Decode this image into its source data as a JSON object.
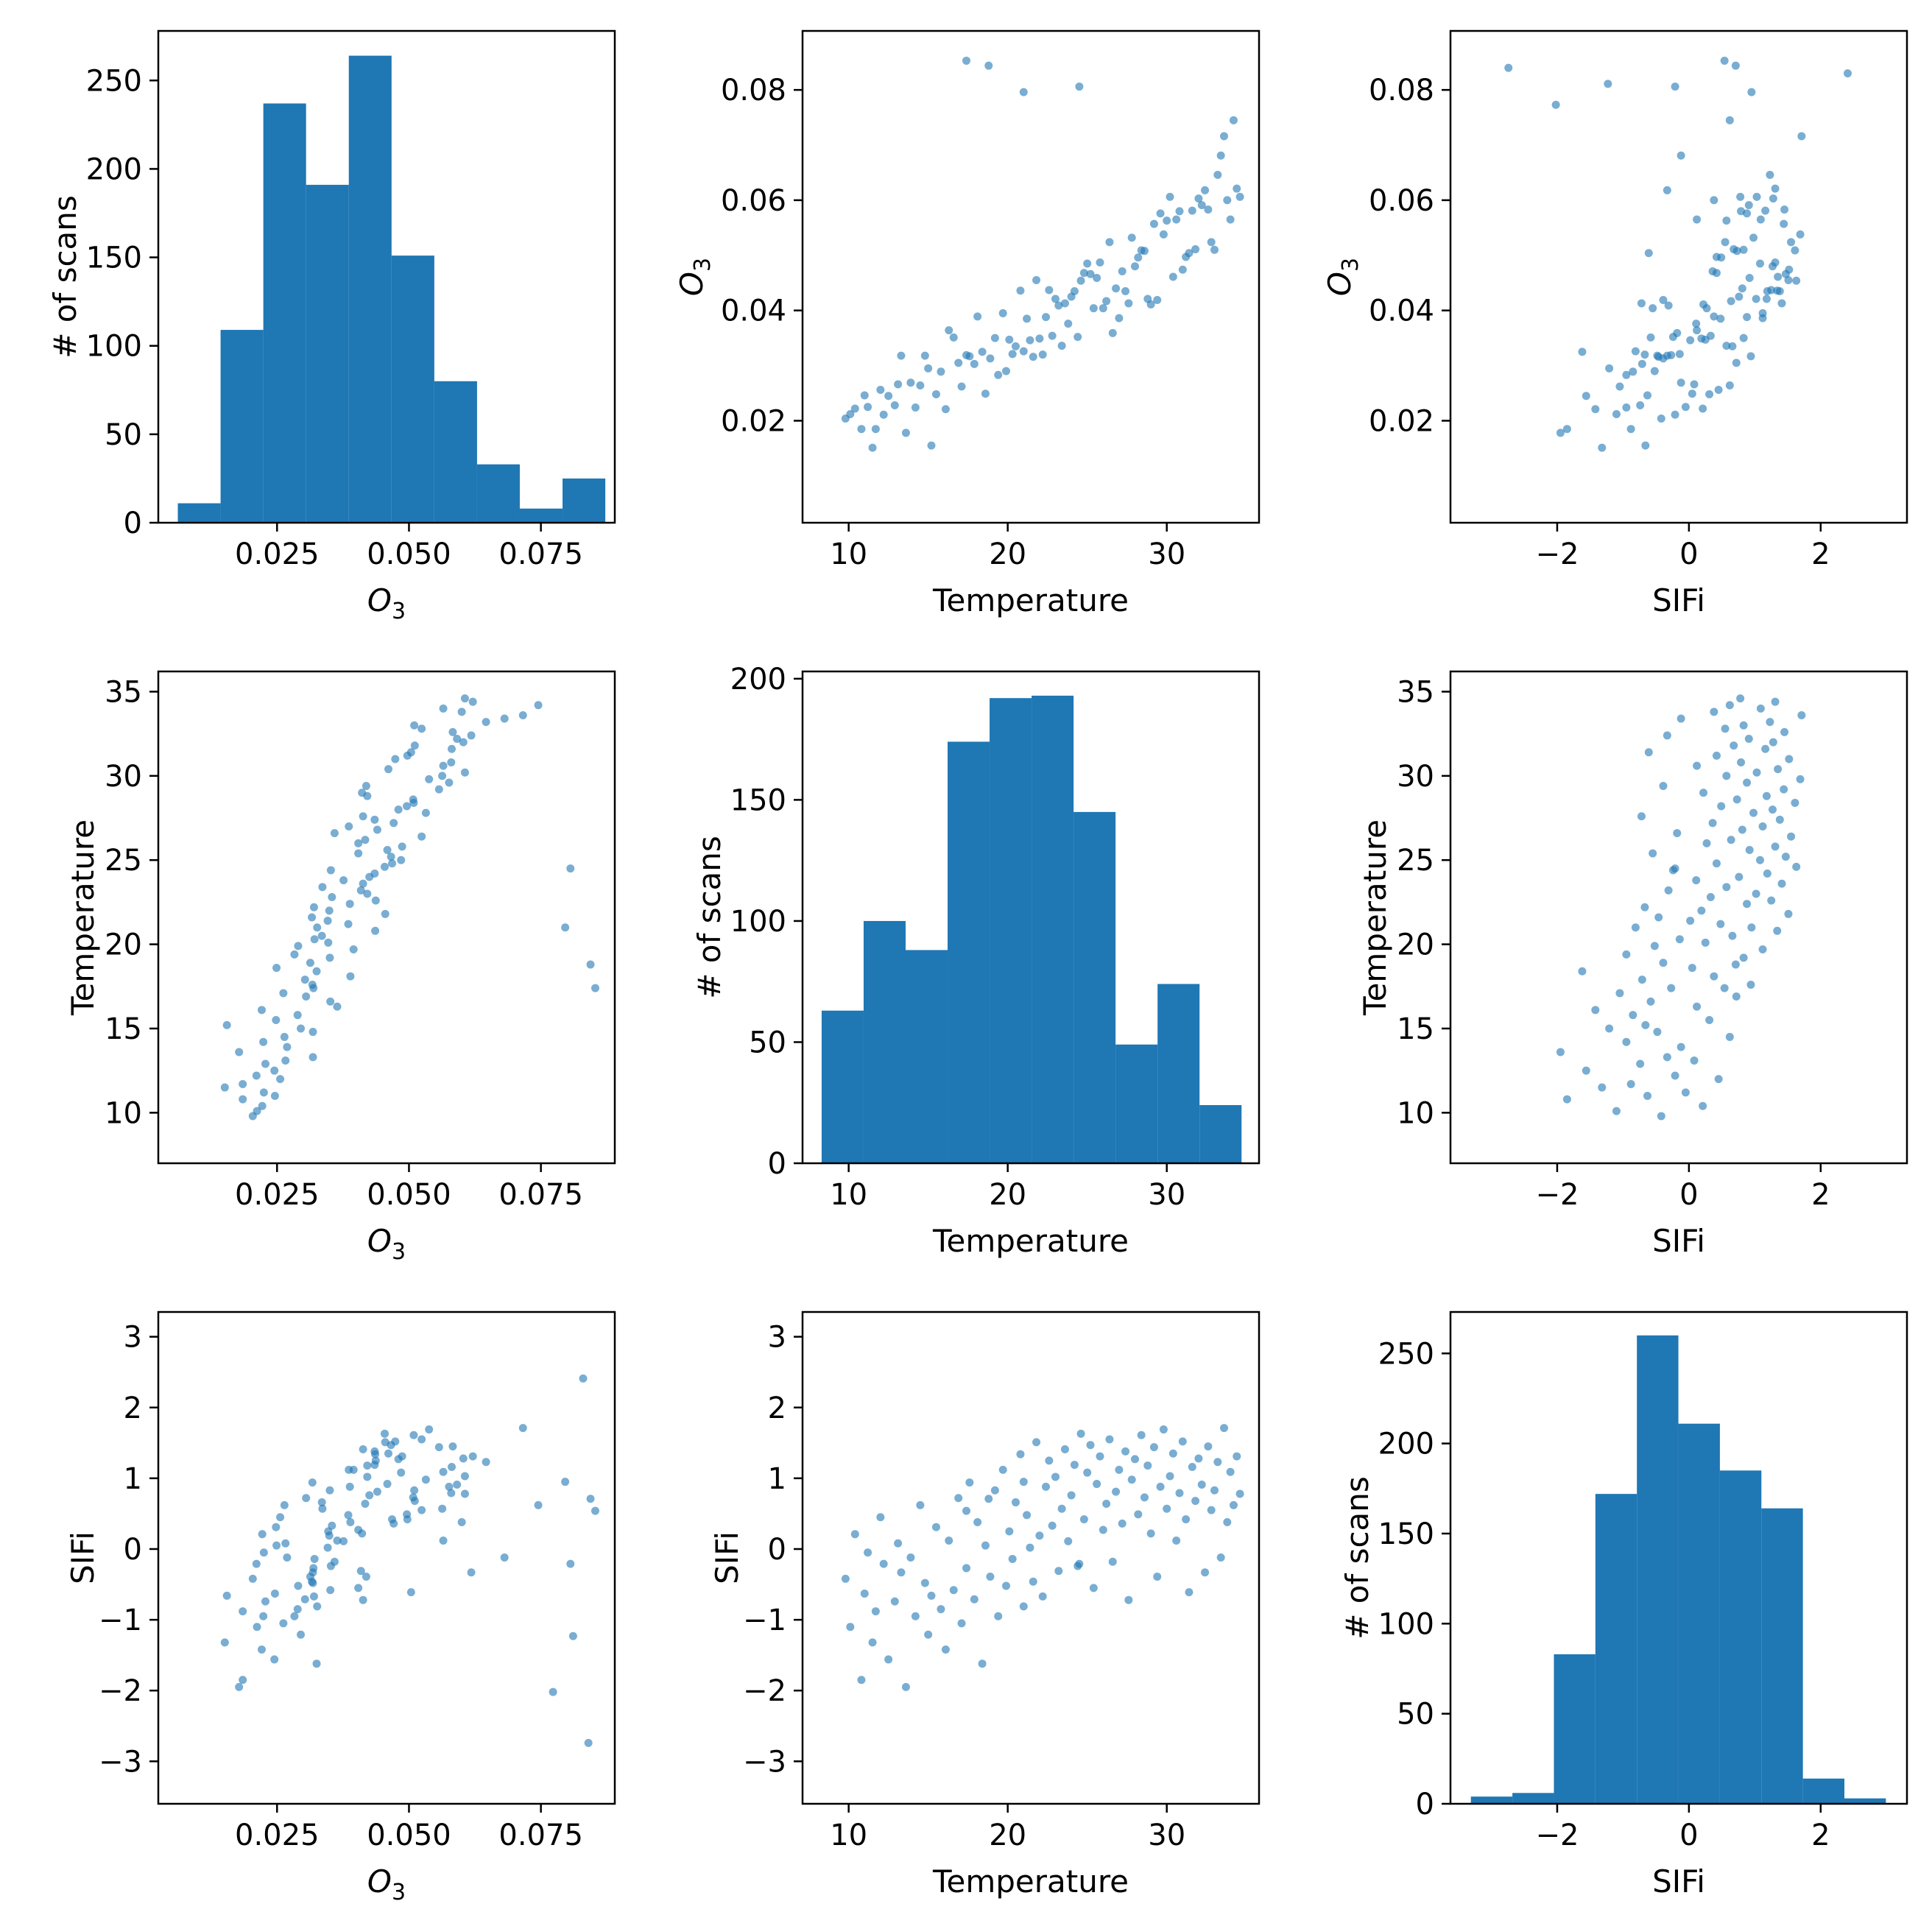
{
  "chart_data": [
    {
      "type": "bar",
      "variant": "histogram",
      "row": 0,
      "col": 0,
      "x_variable": "O3",
      "xlabel": "O",
      "xlabel_sub": "3",
      "ylabel": "# of scans",
      "xlim": [
        0.0025,
        0.089
      ],
      "ylim": [
        0,
        278
      ],
      "xticks": [
        0.025,
        0.05,
        0.075
      ],
      "xtick_labels": [
        "0.025",
        "0.050",
        "0.075"
      ],
      "yticks": [
        0,
        50,
        100,
        150,
        200,
        250
      ],
      "ytick_labels": [
        "0",
        "50",
        "100",
        "150",
        "200",
        "250"
      ],
      "bin_edges": [
        0.0062,
        0.0143,
        0.0224,
        0.0305,
        0.0386,
        0.0467,
        0.0548,
        0.0629,
        0.071,
        0.0791,
        0.0872
      ],
      "counts": [
        11,
        109,
        237,
        191,
        264,
        151,
        80,
        33,
        8,
        25
      ]
    },
    {
      "type": "scatter",
      "row": 0,
      "col": 1,
      "x_variable": "Temperature",
      "y_variable": "O3",
      "xlabel": "Temperature",
      "ylabel": "O",
      "ylabel_sub": "3",
      "xlim": [
        7.1,
        35.8
      ],
      "ylim": [
        0.0015,
        0.0907
      ],
      "xticks": [
        10,
        20,
        30
      ],
      "xtick_labels": [
        "10",
        "20",
        "30"
      ],
      "yticks": [
        0.02,
        0.04,
        0.06,
        0.08
      ],
      "ytick_labels": [
        "0.02",
        "0.04",
        "0.06",
        "0.08"
      ],
      "points_ref": "scatter_points",
      "px": "temp",
      "py": "o3"
    },
    {
      "type": "scatter",
      "row": 0,
      "col": 2,
      "x_variable": "SIFi",
      "y_variable": "O3",
      "xlabel": "SIFi",
      "ylabel": "O",
      "ylabel_sub": "3",
      "xlim": [
        -3.62,
        3.31
      ],
      "ylim": [
        0.0015,
        0.0907
      ],
      "xticks": [
        -2,
        0,
        2
      ],
      "xtick_labels": [
        "−2",
        "0",
        "2"
      ],
      "yticks": [
        0.02,
        0.04,
        0.06,
        0.08
      ],
      "ytick_labels": [
        "0.02",
        "0.04",
        "0.06",
        "0.08"
      ],
      "points_ref": "scatter_points",
      "px": "sifi",
      "py": "o3"
    },
    {
      "type": "scatter",
      "row": 1,
      "col": 0,
      "x_variable": "O3",
      "y_variable": "Temperature",
      "xlabel": "O",
      "xlabel_sub": "3",
      "ylabel": "Temperature",
      "xlim": [
        0.0025,
        0.089
      ],
      "ylim": [
        7.0,
        36.2
      ],
      "xticks": [
        0.025,
        0.05,
        0.075
      ],
      "xtick_labels": [
        "0.025",
        "0.050",
        "0.075"
      ],
      "yticks": [
        10,
        15,
        20,
        25,
        30,
        35
      ],
      "ytick_labels": [
        "10",
        "15",
        "20",
        "25",
        "30",
        "35"
      ],
      "points_ref": "scatter_points",
      "px": "o3",
      "py": "temp"
    },
    {
      "type": "bar",
      "variant": "histogram",
      "row": 1,
      "col": 1,
      "x_variable": "Temperature",
      "xlabel": "Temperature",
      "ylabel": "# of scans",
      "xlim": [
        7.1,
        35.8
      ],
      "ylim": [
        0,
        203
      ],
      "xticks": [
        10,
        20,
        30
      ],
      "xtick_labels": [
        "10",
        "20",
        "30"
      ],
      "yticks": [
        0,
        50,
        100,
        150,
        200
      ],
      "ytick_labels": [
        "0",
        "50",
        "100",
        "150",
        "200"
      ],
      "bin_edges": [
        8.3,
        10.94,
        13.58,
        16.22,
        18.86,
        21.5,
        24.14,
        26.78,
        29.42,
        32.06,
        34.7
      ],
      "counts": [
        63,
        100,
        88,
        174,
        192,
        193,
        145,
        49,
        74,
        24
      ]
    },
    {
      "type": "scatter",
      "row": 1,
      "col": 2,
      "x_variable": "SIFi",
      "y_variable": "Temperature",
      "xlabel": "SIFi",
      "ylabel": "Temperature",
      "xlim": [
        -3.62,
        3.31
      ],
      "ylim": [
        7.0,
        36.2
      ],
      "xticks": [
        -2,
        0,
        2
      ],
      "xtick_labels": [
        "−2",
        "0",
        "2"
      ],
      "yticks": [
        10,
        15,
        20,
        25,
        30,
        35
      ],
      "ytick_labels": [
        "10",
        "15",
        "20",
        "25",
        "30",
        "35"
      ],
      "points_ref": "scatter_points",
      "px": "sifi",
      "py": "temp"
    },
    {
      "type": "scatter",
      "row": 2,
      "col": 0,
      "x_variable": "O3",
      "y_variable": "SIFi",
      "xlabel": "O",
      "xlabel_sub": "3",
      "ylabel": "SIFi",
      "xlim": [
        0.0025,
        0.089
      ],
      "ylim": [
        -3.6,
        3.35
      ],
      "xticks": [
        0.025,
        0.05,
        0.075
      ],
      "xtick_labels": [
        "0.025",
        "0.050",
        "0.075"
      ],
      "yticks": [
        -3,
        -2,
        -1,
        0,
        1,
        2,
        3
      ],
      "ytick_labels": [
        "−3",
        "−2",
        "−1",
        "0",
        "1",
        "2",
        "3"
      ],
      "points_ref": "scatter_points",
      "px": "o3",
      "py": "sifi"
    },
    {
      "type": "scatter",
      "row": 2,
      "col": 1,
      "x_variable": "Temperature",
      "y_variable": "SIFi",
      "xlabel": "Temperature",
      "ylabel": "SIFi",
      "xlim": [
        7.1,
        35.8
      ],
      "ylim": [
        -3.6,
        3.35
      ],
      "xticks": [
        10,
        20,
        30
      ],
      "xtick_labels": [
        "10",
        "20",
        "30"
      ],
      "yticks": [
        -3,
        -2,
        -1,
        0,
        1,
        2,
        3
      ],
      "ytick_labels": [
        "−3",
        "−2",
        "−1",
        "0",
        "1",
        "2",
        "3"
      ],
      "points_ref": "scatter_points",
      "px": "temp",
      "py": "sifi"
    },
    {
      "type": "bar",
      "variant": "histogram",
      "row": 2,
      "col": 2,
      "x_variable": "SIFi",
      "xlabel": "SIFi",
      "ylabel": "# of scans",
      "xlim": [
        -3.62,
        3.31
      ],
      "ylim": [
        0,
        273
      ],
      "xticks": [
        -2,
        0,
        2
      ],
      "xtick_labels": [
        "−2",
        "0",
        "2"
      ],
      "yticks": [
        0,
        50,
        100,
        150,
        200,
        250
      ],
      "ytick_labels": [
        "0",
        "50",
        "100",
        "150",
        "200",
        "250"
      ],
      "bin_edges": [
        -3.31,
        -2.68,
        -2.05,
        -1.42,
        -0.79,
        -0.16,
        0.47,
        1.1,
        1.73,
        2.36,
        2.99
      ],
      "counts": [
        4,
        6,
        83,
        172,
        260,
        211,
        185,
        164,
        14,
        3
      ]
    }
  ],
  "scatter_points": {
    "o3": [
      0.0204,
      0.0212,
      0.0222,
      0.0185,
      0.0246,
      0.0225,
      0.0151,
      0.0185,
      0.0256,
      0.0211,
      0.0245,
      0.0228,
      0.0266,
      0.0318,
      0.0178,
      0.0269,
      0.0224,
      0.0264,
      0.0318,
      0.0295,
      0.0155,
      0.0248,
      0.0289,
      0.0221,
      0.0364,
      0.0351,
      0.0305,
      0.0262,
      0.0319,
      0.0317,
      0.0303,
      0.0389,
      0.0325,
      0.0249,
      0.0313,
      0.035,
      0.0283,
      0.0395,
      0.029,
      0.0347,
      0.0321,
      0.0335,
      0.0436,
      0.0326,
      0.0385,
      0.0346,
      0.0316,
      0.0455,
      0.0349,
      0.032,
      0.0388,
      0.0437,
      0.0354,
      0.0421,
      0.0409,
      0.0336,
      0.0413,
      0.0376,
      0.0425,
      0.0435,
      0.0352,
      0.0454,
      0.0468,
      0.0485,
      0.0466,
      0.0404,
      0.0459,
      0.0487,
      0.0404,
      0.0417,
      0.0524,
      0.0359,
      0.044,
      0.0386,
      0.0471,
      0.0435,
      0.0413,
      0.0532,
      0.048,
      0.0496,
      0.0509,
      0.0508,
      0.0421,
      0.0411,
      0.0557,
      0.0419,
      0.0576,
      0.0538,
      0.0563,
      0.0606,
      0.0461,
      0.0565,
      0.058,
      0.0474,
      0.0497,
      0.0504,
      0.0581,
      0.0511,
      0.0603,
      0.0591,
      0.0618,
      0.0583,
      0.0524,
      0.051,
      0.0646,
      0.0681,
      0.0716,
      0.06,
      0.0565,
      0.0745,
      0.0621,
      0.0606,
      0.0806,
      0.0796,
      0.0853,
      0.0844,
      0.083,
      0.0773,
      0.084,
      0.0811
    ],
    "temp": [
      9.8,
      10.1,
      10.4,
      10.8,
      11.0,
      11.2,
      11.5,
      11.7,
      12.0,
      12.2,
      12.5,
      12.9,
      13.1,
      13.3,
      13.6,
      13.9,
      14.2,
      14.5,
      14.8,
      15.0,
      15.2,
      15.5,
      15.8,
      16.1,
      16.3,
      16.6,
      16.9,
      17.1,
      17.4,
      17.6,
      17.9,
      18.1,
      18.4,
      18.6,
      18.9,
      19.2,
      19.4,
      19.7,
      19.9,
      20.1,
      20.3,
      20.5,
      20.8,
      21.0,
      21.2,
      21.4,
      21.6,
      21.8,
      22.0,
      22.2,
      22.4,
      22.6,
      22.8,
      23.0,
      23.2,
      23.4,
      23.6,
      23.8,
      24.0,
      24.2,
      24.4,
      24.6,
      24.8,
      25.0,
      25.2,
      25.4,
      25.6,
      25.8,
      26.0,
      26.2,
      26.4,
      26.6,
      26.8,
      27.0,
      27.2,
      27.4,
      27.6,
      27.8,
      28.0,
      28.2,
      28.4,
      28.6,
      28.8,
      29.0,
      29.2,
      29.4,
      29.6,
      29.8,
      30.0,
      30.2,
      30.4,
      30.6,
      30.8,
      31.0,
      31.2,
      31.4,
      31.6,
      31.8,
      32.0,
      32.2,
      32.4,
      32.6,
      32.8,
      33.0,
      33.2,
      33.4,
      33.6,
      33.8,
      34.0,
      34.2,
      34.4,
      34.6,
      24.5,
      21.0,
      17.4,
      18.8
    ],
    "sifi": [
      -0.42,
      -1.1,
      0.21,
      -1.85,
      -0.63,
      -0.05,
      -1.32,
      -0.88,
      0.45,
      -0.21,
      -1.56,
      -0.74,
      0.08,
      -0.33,
      -1.95,
      -0.12,
      -0.95,
      0.62,
      -0.48,
      -1.21,
      -0.66,
      0.31,
      -0.85,
      -1.42,
      0.12,
      -0.58,
      0.72,
      -1.05,
      -0.27,
      0.94,
      -0.71,
      0.38,
      -1.62,
      0.05,
      -0.39,
      0.83,
      -0.95,
      1.12,
      -0.52,
      0.25,
      -0.14,
      0.66,
      1.34,
      -0.81,
      0.48,
      0.02,
      -0.46,
      1.51,
      0.19,
      -0.67,
      0.88,
      1.25,
      0.33,
      1.02,
      -0.31,
      0.57,
      1.41,
      0.11,
      0.76,
      1.19,
      -0.24,
      1.63,
      0.42,
      1.08,
      1.47,
      -0.55,
      0.92,
      1.31,
      0.27,
      0.64,
      1.55,
      -0.18,
      0.81,
      1.12,
      0.36,
      1.38,
      -0.72,
      0.98,
      1.27,
      0.49,
      1.61,
      0.73,
      1.18,
      0.22,
      1.44,
      -0.39,
      0.88,
      1.69,
      0.57,
      1.03,
      1.35,
      0.12,
      0.79,
      1.52,
      0.42,
      -0.61,
      1.16,
      0.68,
      1.28,
      0.91,
      -0.33,
      1.45,
      0.55,
      0.83,
      1.23,
      -0.12,
      1.71,
      0.38,
      1.09,
      0.62,
      1.31,
      0.78,
      -0.21,
      0.95,
      0.54,
      0.71,
      2.41,
      -2.02,
      -2.74,
      -1.23
    ]
  }
}
